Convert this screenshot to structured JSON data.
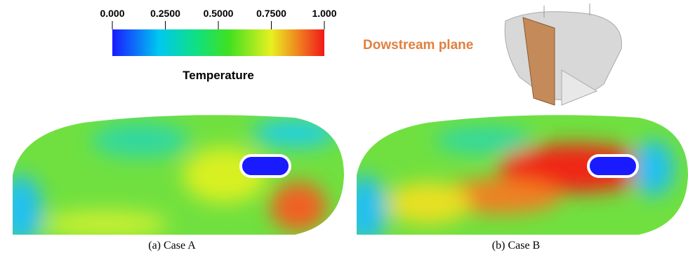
{
  "colorbar": {
    "title": "Temperature",
    "range": [
      0,
      1
    ],
    "ticks": [
      {
        "value": 0,
        "label": "0.000"
      },
      {
        "value": 0.25,
        "label": "0.2500"
      },
      {
        "value": 0.5,
        "label": "0.5000"
      },
      {
        "value": 0.75,
        "label": "0.7500"
      },
      {
        "value": 1,
        "label": "1.000"
      }
    ]
  },
  "inset": {
    "label": "Dowstream plane"
  },
  "panels": [
    {
      "caption": "(a) Case A"
    },
    {
      "caption": "(b) Case B"
    }
  ]
}
